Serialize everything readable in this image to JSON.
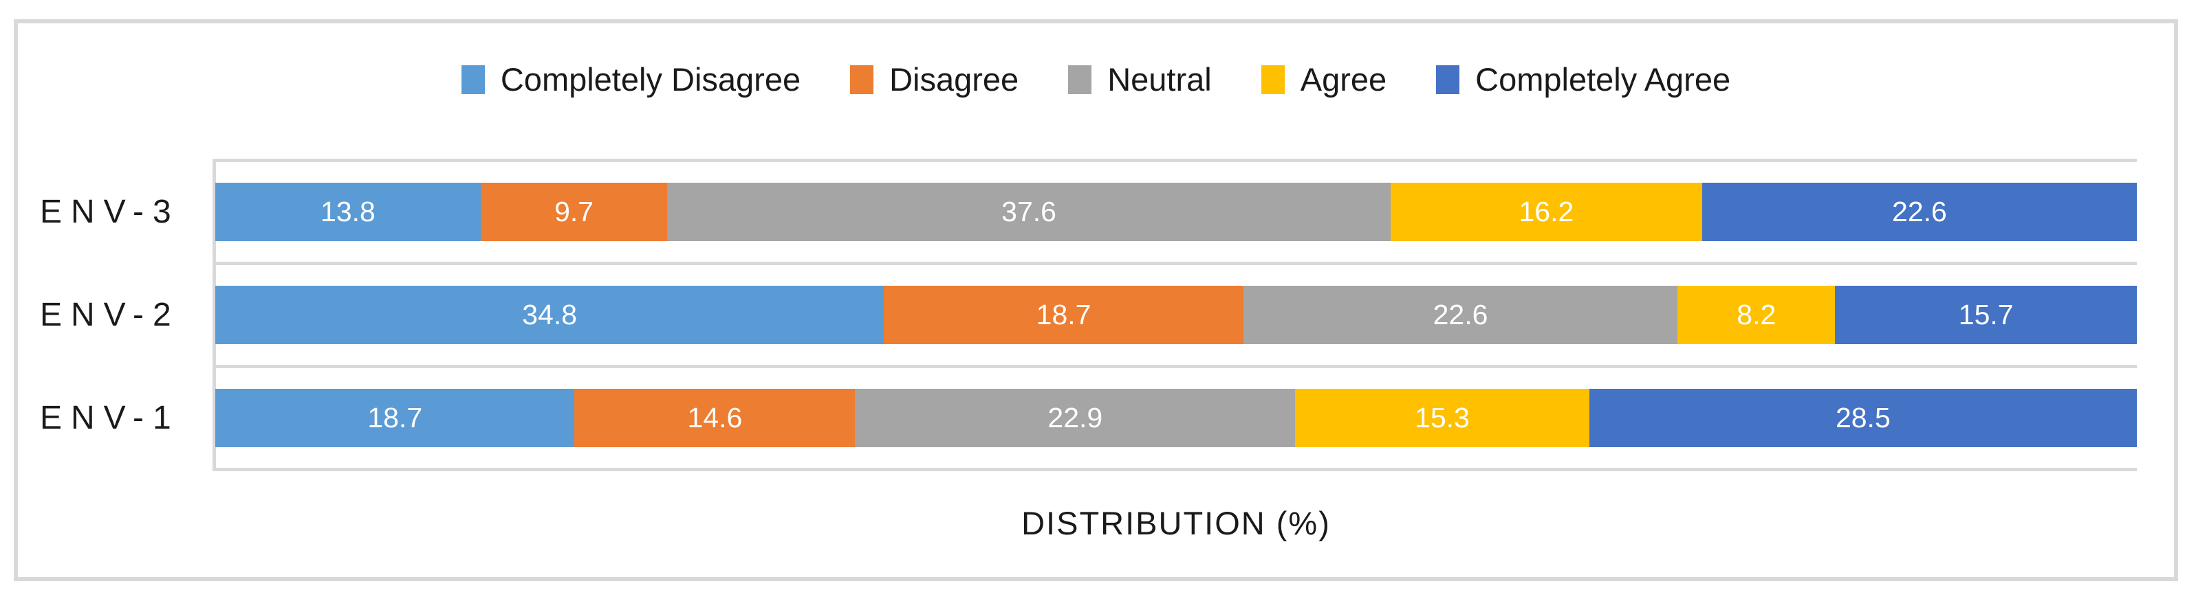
{
  "chart_data": {
    "type": "bar",
    "orientation": "horizontal",
    "stacked": true,
    "stacked_as_percent": true,
    "categories": [
      "ENV-3",
      "ENV-2",
      "ENV-1"
    ],
    "series": [
      {
        "name": "Completely Disagree",
        "color": "#5B9BD5",
        "values": [
          13.8,
          34.8,
          18.7
        ]
      },
      {
        "name": "Disagree",
        "color": "#ED7D31",
        "values": [
          9.7,
          18.7,
          14.6
        ]
      },
      {
        "name": "Neutral",
        "color": "#A5A5A5",
        "values": [
          37.6,
          22.6,
          22.9
        ]
      },
      {
        "name": "Agree",
        "color": "#FFC000",
        "values": [
          16.2,
          8.2,
          15.3
        ]
      },
      {
        "name": "Completely Agree",
        "color": "#4472C4",
        "values": [
          22.6,
          15.7,
          28.5
        ]
      }
    ],
    "xlabel": "DISTRIBUTION (%)",
    "xlim": [
      0,
      100
    ],
    "grid": "category-boundary-lines",
    "legend_position": "top",
    "data_labels": "inside-center-white"
  },
  "colors": {
    "frame_border": "#D9D9D9",
    "gridline": "#D9D9D9",
    "text": "#1a1a1a",
    "data_label_text": "#FFFFFF",
    "background": "#FFFFFF"
  }
}
